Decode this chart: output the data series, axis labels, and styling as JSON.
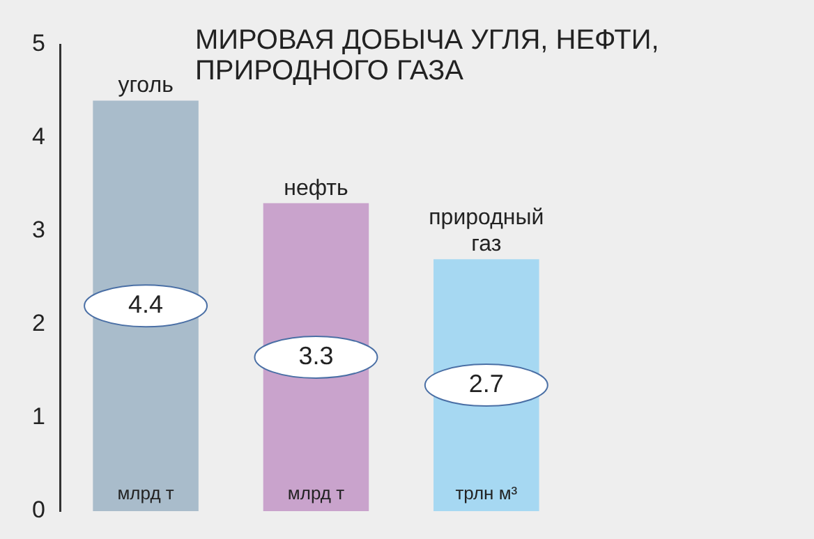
{
  "chart_data": {
    "type": "bar",
    "title": "МИРОВАЯ ДОБЫЧА УГЛЯ, НЕФТИ, ПРИРОДНОГО ГАЗА",
    "categories": [
      "уголь",
      "нефть",
      "природный газ"
    ],
    "values": [
      4.4,
      3.3,
      2.7
    ],
    "colors": [
      "#a9bccb",
      "#c9a3cc",
      "#a6d8f2"
    ],
    "data_labels": true,
    "annotations": [
      {
        "text": "млрд т",
        "x": "уголь",
        "y": 0
      },
      {
        "text": "млрд т",
        "x": "нефть",
        "y": 0
      },
      {
        "text": "трлн м³",
        "x": "природный газ",
        "y": 0
      }
    ],
    "ylim": [
      0,
      5
    ],
    "yticks": [
      0,
      1,
      2,
      3,
      4,
      5
    ],
    "grid": false,
    "legend": false
  }
}
